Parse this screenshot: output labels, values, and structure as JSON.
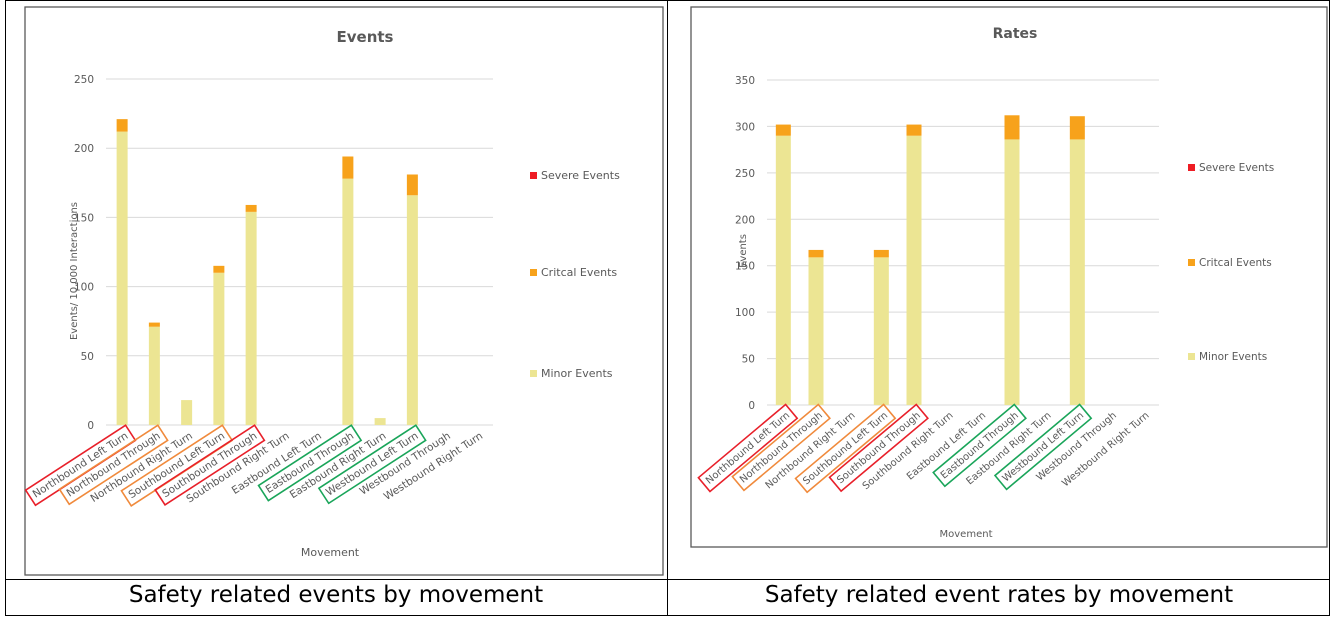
{
  "captions": {
    "left": "Safety related events by movement",
    "right": "Safety related event rates by movement"
  },
  "colors": {
    "severe": "#ee1c24",
    "critical": "#f7a21b",
    "minor": "#ece593",
    "grid": "#d9d9d9",
    "axis_text": "#595959",
    "box_red": "#e8202a",
    "box_orange": "#f08a3c",
    "box_green": "#1aa55a"
  },
  "chart_data": [
    {
      "type": "bar",
      "stacked": true,
      "title": "Events",
      "xlabel": "Movement",
      "ylabel": "Events/ 10,000 Interactions",
      "ylim": [
        0,
        250
      ],
      "yticks": [
        0,
        50,
        100,
        150,
        200,
        250
      ],
      "grid": true,
      "legend_position": "right",
      "categories": [
        "Northbound Left Turn",
        "Northbound Through",
        "Northbound Right Turn",
        "Southbound Left Turn",
        "Southbound Through",
        "Southbound Right Turn",
        "Eastbound Left Turn",
        "Eastbound Through",
        "Eastbound Right Turn",
        "Westbound Left Turn",
        "Westbound Through",
        "Westbound Right Turn"
      ],
      "category_highlight": [
        "box_red",
        "box_orange",
        "",
        "box_orange",
        "box_red",
        "",
        "",
        "box_green",
        "",
        "box_green",
        "",
        ""
      ],
      "series": [
        {
          "name": "Minor Events",
          "color_key": "minor",
          "values": [
            212,
            71,
            18,
            110,
            154,
            0,
            0,
            178,
            5,
            166,
            0,
            0
          ]
        },
        {
          "name": "Critcal Events",
          "color_key": "critical",
          "values": [
            9,
            3,
            0,
            5,
            5,
            0,
            0,
            16,
            0,
            15,
            0,
            0
          ]
        },
        {
          "name": "Severe Events",
          "color_key": "severe",
          "values": [
            0,
            0,
            0,
            0,
            0,
            0,
            0,
            0,
            0,
            0,
            0,
            0
          ]
        }
      ]
    },
    {
      "type": "bar",
      "stacked": true,
      "title": "Rates",
      "xlabel": "Movement",
      "ylabel": "Events",
      "ylim": [
        0,
        350
      ],
      "yticks": [
        0,
        50,
        100,
        150,
        200,
        250,
        300,
        350
      ],
      "grid": true,
      "legend_position": "right",
      "categories": [
        "Northbound Left Turn",
        "Northbound Through",
        "Northbound Right Turn",
        "Southbound Left Turn",
        "Southbound Through",
        "Southbound Right Turn",
        "Eastbound Left Turn",
        "Eastbound Through",
        "Eastbound Right Turn",
        "Westbound Left Turn",
        "Westbound Through",
        "Westbound Right Turn"
      ],
      "category_highlight": [
        "box_red",
        "box_orange",
        "",
        "box_orange",
        "box_red",
        "",
        "",
        "box_green",
        "",
        "box_green",
        "",
        ""
      ],
      "series": [
        {
          "name": "Minor Events",
          "color_key": "minor",
          "values": [
            290,
            159,
            0,
            159,
            290,
            0,
            0,
            286,
            0,
            286,
            0,
            0
          ]
        },
        {
          "name": "Critcal Events",
          "color_key": "critical",
          "values": [
            12,
            8,
            0,
            8,
            12,
            0,
            0,
            26,
            0,
            25,
            0,
            0
          ]
        },
        {
          "name": "Severe Events",
          "color_key": "severe",
          "values": [
            0,
            0,
            0,
            0,
            0,
            0,
            0,
            0,
            0,
            0,
            0,
            0
          ]
        }
      ]
    }
  ]
}
